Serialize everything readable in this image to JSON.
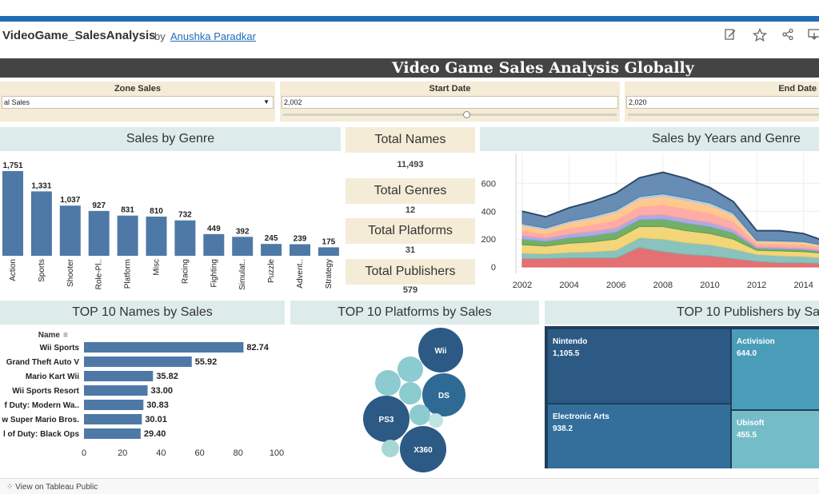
{
  "header": {
    "app_title": "VideoGame_SalesAnalysis",
    "by": "by",
    "author": "Anushka Paradkar",
    "icons": [
      "edit-icon",
      "star-icon",
      "share-icon",
      "download-icon"
    ]
  },
  "banner_title": "Video Game Sales Analysis Globally",
  "filters": {
    "zone": {
      "label": "Zone Sales",
      "value": "al Sales"
    },
    "start": {
      "label": "Start Date",
      "value": "2,002",
      "position": 0.55
    },
    "end": {
      "label": "End Date",
      "value": "2,020",
      "position": 0.1
    }
  },
  "kpis": [
    {
      "label": "Total Names",
      "value": "11,493"
    },
    {
      "label": "Total Genres",
      "value": "12"
    },
    {
      "label": "Total Platforms",
      "value": "31"
    },
    {
      "label": "Total Publishers",
      "value": "579"
    }
  ],
  "colors": {
    "bar": "#4e79a7",
    "filter_bg": "#f5ecd8",
    "title_bg": "#ddeceb",
    "banner_bg": "#444444"
  },
  "footer": {
    "text": "View on Tableau Public"
  },
  "chart_data": [
    {
      "type": "bar",
      "title": "Sales by Genre",
      "categories": [
        "Action",
        "Sports",
        "Shooter",
        "Role-Pl..",
        "Platform",
        "Misc",
        "Racing",
        "Fighting",
        "Simulat..",
        "Puzzle",
        "Advent..",
        "Strategy"
      ],
      "values": [
        1751,
        1331,
        1037,
        927,
        831,
        810,
        732,
        449,
        392,
        245,
        239,
        175
      ],
      "value_labels": [
        "1,751",
        "1,331",
        "1,037",
        "927",
        "831",
        "810",
        "732",
        "449",
        "392",
        "245",
        "239",
        "175"
      ],
      "ylim": [
        0,
        1751
      ]
    },
    {
      "type": "area",
      "title": "Sales by Years and Genre",
      "stacked": true,
      "x": [
        2002,
        2003,
        2004,
        2005,
        2006,
        2007,
        2008,
        2009,
        2010,
        2011,
        2012,
        2013,
        2014,
        2015
      ],
      "xticks": [
        "2002",
        "2004",
        "2006",
        "2008",
        "2010",
        "2012",
        "2014"
      ],
      "yticks": [
        "0",
        "200",
        "400",
        "600"
      ],
      "ylim": [
        0,
        700
      ],
      "series": [
        {
          "color": "#e15759",
          "values": [
            60,
            60,
            65,
            65,
            65,
            140,
            110,
            90,
            80,
            60,
            40,
            30,
            30,
            25
          ]
        },
        {
          "color": "#76b7b2",
          "values": [
            40,
            35,
            40,
            45,
            55,
            70,
            90,
            85,
            80,
            70,
            50,
            50,
            45,
            40
          ]
        },
        {
          "color": "#f1ce63",
          "values": [
            60,
            55,
            65,
            70,
            80,
            80,
            90,
            85,
            80,
            70,
            30,
            35,
            35,
            30
          ]
        },
        {
          "color": "#59a14f",
          "values": [
            40,
            35,
            40,
            45,
            50,
            50,
            55,
            55,
            50,
            45,
            15,
            15,
            15,
            12
          ]
        },
        {
          "color": "#9c9ede",
          "values": [
            25,
            20,
            25,
            30,
            30,
            30,
            30,
            30,
            30,
            25,
            10,
            10,
            10,
            8
          ]
        },
        {
          "color": "#ff9d9a",
          "values": [
            35,
            30,
            40,
            45,
            55,
            60,
            70,
            70,
            65,
            55,
            20,
            22,
            22,
            18
          ]
        },
        {
          "color": "#ffbe7d",
          "values": [
            40,
            35,
            45,
            50,
            60,
            60,
            65,
            65,
            60,
            50,
            20,
            20,
            20,
            15
          ]
        },
        {
          "color": "#a0cbe8",
          "values": [
            10,
            10,
            10,
            12,
            12,
            15,
            15,
            15,
            15,
            12,
            5,
            5,
            5,
            4
          ]
        },
        {
          "color": "#4e79a7",
          "values": [
            90,
            80,
            95,
            108,
            123,
            135,
            155,
            140,
            110,
            83,
            70,
            73,
            58,
            28
          ]
        }
      ]
    },
    {
      "type": "bar",
      "orientation": "horizontal",
      "title": "TOP 10 Names by Sales",
      "ylabel": "Name",
      "categories": [
        "Wii Sports",
        "Grand Theft Auto V",
        "Mario Kart Wii",
        "Wii Sports Resort",
        "f Duty: Modern Wa..",
        "w Super Mario Bros.",
        "l of Duty: Black Ops"
      ],
      "values": [
        82.74,
        55.92,
        35.82,
        33.0,
        30.83,
        30.01,
        29.4
      ],
      "value_labels": [
        "82.74",
        "55.92",
        "35.82",
        "33.00",
        "30.83",
        "30.01",
        "29.40"
      ],
      "xticks": [
        "0",
        "20",
        "40",
        "60",
        "80",
        "100"
      ],
      "xlim": [
        0,
        100
      ]
    },
    {
      "type": "scatter",
      "subtype": "packed-bubbles",
      "title": "TOP 10 Platforms by Sales",
      "bubbles": [
        {
          "label": "Wii",
          "size": 28,
          "color": "#2c5a85"
        },
        {
          "label": "DS",
          "size": 27,
          "color": "#2f6a95"
        },
        {
          "label": "PS3",
          "size": 29,
          "color": "#2c5a85"
        },
        {
          "label": "X360",
          "size": 29,
          "color": "#2c5a85"
        },
        {
          "label": "",
          "size": 16,
          "color": "#8ccbcf"
        },
        {
          "label": "",
          "size": 16,
          "color": "#8ccbcf"
        },
        {
          "label": "",
          "size": 14,
          "color": "#8ccbcf"
        },
        {
          "label": "",
          "size": 13,
          "color": "#8ccbcf"
        },
        {
          "label": "",
          "size": 11,
          "color": "#a6d7d5"
        },
        {
          "label": "",
          "size": 9,
          "color": "#bfe3df"
        }
      ]
    },
    {
      "type": "table",
      "subtype": "treemap",
      "title": "TOP 10 Publishers by Sa",
      "tiles": [
        {
          "label": "Nintendo",
          "value": "1,105.5",
          "color": "#2c5a85"
        },
        {
          "label": "Electronic Arts",
          "value": "938.2",
          "color": "#336f9a"
        },
        {
          "label": "Activision",
          "value": "644.0",
          "color": "#4a9db8"
        },
        {
          "label": "Ubisoft",
          "value": "455.5",
          "color": "#75bcc9"
        }
      ]
    }
  ]
}
